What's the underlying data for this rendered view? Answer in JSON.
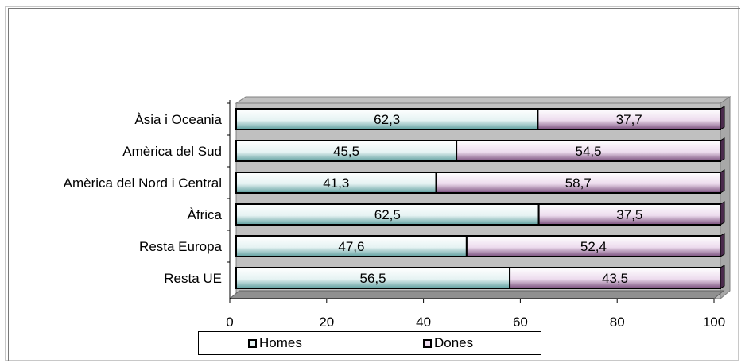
{
  "chart_data": {
    "type": "bar",
    "orientation": "horizontal",
    "stacked": true,
    "categories": [
      "Àsia i Oceania",
      "Amèrica del Sud",
      "Amèrica del Nord i Central",
      "Àfrica",
      "Resta Europa",
      "Resta UE"
    ],
    "series": [
      {
        "name": "Homes",
        "values": [
          62.3,
          45.5,
          41.3,
          62.5,
          47.6,
          56.5
        ],
        "labels": [
          "62,3",
          "45,5",
          "41,3",
          "62,5",
          "47,6",
          "56,5"
        ],
        "color": "#e6f3f3"
      },
      {
        "name": "Dones",
        "values": [
          37.7,
          54.5,
          58.7,
          37.5,
          52.4,
          43.5
        ],
        "labels": [
          "37,7",
          "54,5",
          "58,7",
          "37,5",
          "52,4",
          "43,5"
        ],
        "color": "#eddcee"
      }
    ],
    "xlim": [
      0,
      100
    ],
    "xticks": [
      "0",
      "20",
      "40",
      "60",
      "80",
      "100"
    ],
    "legend": "bottom",
    "grid": false
  }
}
